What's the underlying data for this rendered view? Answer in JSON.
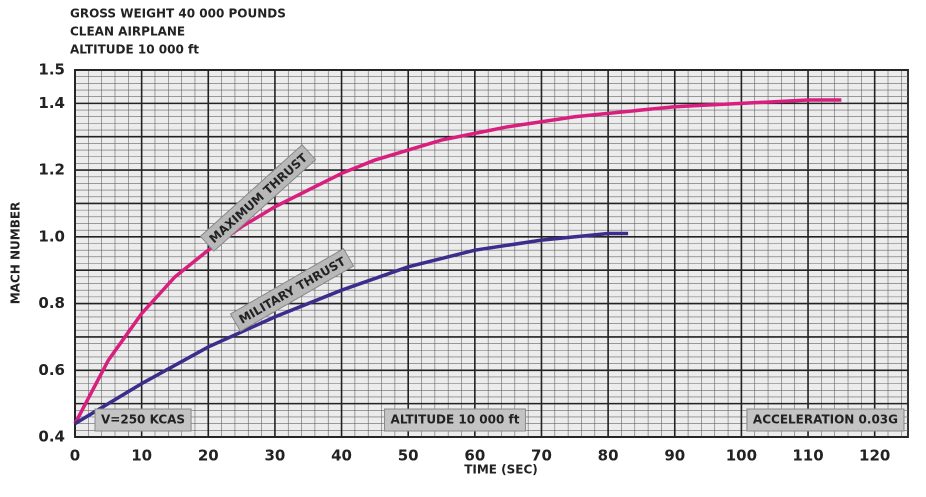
{
  "chart_data": {
    "type": "line",
    "header": [
      "GROSS WEIGHT 40 000 POUNDS",
      "CLEAN AIRPLANE",
      "ALTITUDE 10 000 ft"
    ],
    "xlabel": "TIME (SEC)",
    "ylabel": "MACH NUMBER",
    "xlim": [
      0,
      125
    ],
    "ylim": [
      0.4,
      1.5
    ],
    "xticks": [
      0,
      10,
      20,
      30,
      40,
      50,
      60,
      70,
      80,
      90,
      100,
      110,
      120
    ],
    "yticks": [
      0.4,
      0.6,
      0.8,
      {
        "value": 1,
        "label": "1.0"
      },
      1.2,
      1.4,
      1.5
    ],
    "grid": true,
    "series": [
      {
        "name": "MAXIMUM THRUST",
        "color": "#d81f7e",
        "x": [
          0,
          5,
          10,
          15,
          20,
          25,
          30,
          35,
          40,
          45,
          50,
          55,
          60,
          65,
          70,
          75,
          80,
          85,
          90,
          95,
          100,
          105,
          110,
          115
        ],
        "values": [
          0.44,
          0.63,
          0.77,
          0.88,
          0.96,
          1.03,
          1.09,
          1.14,
          1.19,
          1.23,
          1.26,
          1.29,
          1.31,
          1.33,
          1.345,
          1.36,
          1.37,
          1.38,
          1.39,
          1.395,
          1.4,
          1.405,
          1.41,
          1.41
        ]
      },
      {
        "name": "MILITARY THRUST",
        "color": "#3a2d8c",
        "x": [
          0,
          10,
          20,
          30,
          40,
          50,
          60,
          70,
          80,
          83
        ],
        "values": [
          0.44,
          0.56,
          0.67,
          0.76,
          0.84,
          0.91,
          0.96,
          0.99,
          1.01,
          1.01
        ]
      }
    ],
    "annotations": [
      "V=250 KCAS",
      "ALTITUDE 10 000 ft",
      "ACCELERATION 0.03G"
    ]
  }
}
